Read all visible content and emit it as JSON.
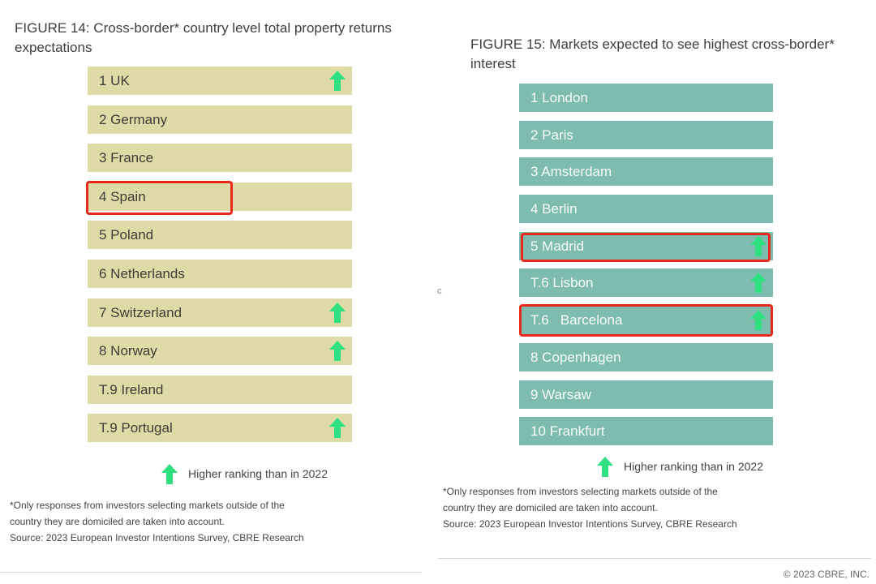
{
  "figure_14": {
    "title": "FIGURE 14: Cross-border* country level total property returns expectations",
    "ranks": [
      {
        "label": "1 UK",
        "up": true
      },
      {
        "label": "2 Germany",
        "up": false
      },
      {
        "label": "3 France",
        "up": false
      },
      {
        "label": "4 Spain",
        "up": false,
        "highlighted": true
      },
      {
        "label": "5 Poland",
        "up": false
      },
      {
        "label": "6 Netherlands",
        "up": false
      },
      {
        "label": "7 Switzerland",
        "up": true
      },
      {
        "label": "8 Norway",
        "up": true
      },
      {
        "label": "T.9 Ireland",
        "up": false
      },
      {
        "label": "T.9 Portugal",
        "up": true
      }
    ],
    "legend": "Higher ranking than in 2022",
    "footnote_1": "*Only responses from investors selecting markets outside of the",
    "footnote_2": "country they are domiciled are taken into account.",
    "source": "Source: 2023 European Investor Intentions Survey, CBRE Research",
    "bar_color": "#dedba7"
  },
  "figure_15": {
    "title": "FIGURE 15: Markets expected to see highest cross-border* interest",
    "ranks": [
      {
        "label": "1 London",
        "up": false
      },
      {
        "label": "2 Paris",
        "up": false
      },
      {
        "label": "3 Amsterdam",
        "up": false
      },
      {
        "label": "4 Berlin",
        "up": false
      },
      {
        "label": "5 Madrid",
        "up": true,
        "highlighted": true
      },
      {
        "label": "T.6 Lisbon",
        "up": true
      },
      {
        "label": "T.6   Barcelona",
        "up": true,
        "highlighted": true
      },
      {
        "label": "8 Copenhagen",
        "up": false
      },
      {
        "label": "9 Warsaw",
        "up": false
      },
      {
        "label": "10 Frankfurt",
        "up": false
      }
    ],
    "legend": "Higher ranking than in 2022",
    "footnote_1": "*Only responses from investors selecting markets outside of the",
    "footnote_2": "country they are domiciled are taken into account.",
    "source": "Source: 2023 European Investor Intentions Survey, CBRE Research",
    "bar_color": "#7dbcae"
  },
  "copyright": "© 2023 CBRE, INC.",
  "edge_mark": "c",
  "colors": {
    "arrow": "#2ee07f",
    "highlight": "#e8291c"
  },
  "icons": {
    "up_arrow": "up-arrow-icon"
  }
}
